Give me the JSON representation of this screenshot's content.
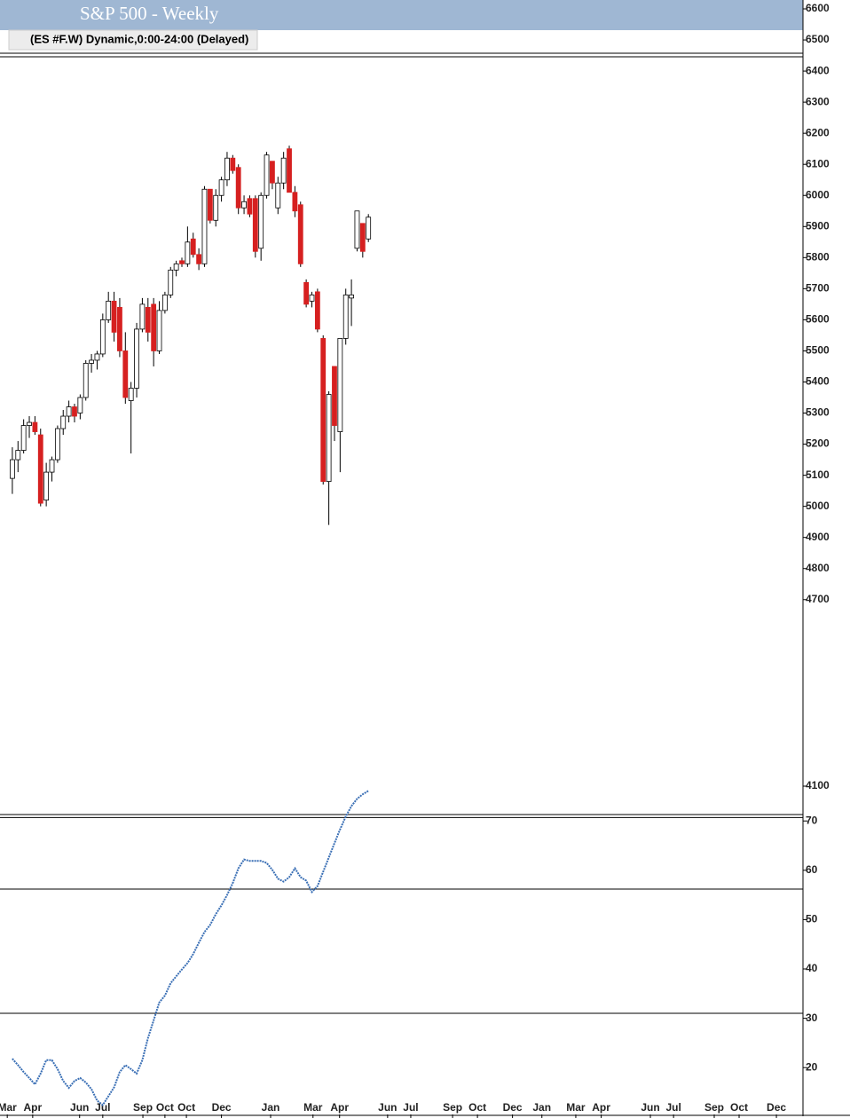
{
  "chart_data": [
    {
      "type": "candlestick",
      "title": "S&P 500 - Weekly",
      "subtitle": "(ES #F.W) Dynamic,0:00-24:00 (Delayed)",
      "up_color": "#ffffff",
      "down_color": "#d62020",
      "xlim": [
        -1.4,
        139.9
      ],
      "ylim": [
        4100,
        6620
      ],
      "yticks": [
        6600,
        6500,
        6400,
        6300,
        6200,
        6100,
        6000,
        5900,
        5800,
        5700,
        5600,
        5500,
        5400,
        5300,
        5200,
        5100,
        5000,
        4900,
        4800,
        4700,
        4100
      ],
      "open": [
        5090,
        5150,
        5180,
        5260,
        5270,
        5230,
        5020,
        5110,
        5150,
        5250,
        5290,
        5320,
        5300,
        5350,
        5460,
        5470,
        5490,
        5600,
        5660,
        5640,
        5500,
        5340,
        5380,
        5570,
        5640,
        5650,
        5500,
        5630,
        5680,
        5760,
        5790,
        5780,
        5860,
        5810,
        5780,
        6020,
        5920,
        6000,
        6050,
        6120,
        6090,
        5960,
        5990,
        5990,
        5830,
        6000,
        6110,
        5960,
        6040,
        6150,
        6010,
        5970,
        5720,
        5660,
        5690,
        5540,
        5080,
        5450,
        5240,
        5540,
        5670,
        5830,
        5910,
        5860
      ],
      "high": [
        5190,
        5210,
        5280,
        5290,
        5290,
        5250,
        5140,
        5160,
        5260,
        5310,
        5340,
        5330,
        5360,
        5470,
        5490,
        5500,
        5620,
        5690,
        5690,
        5670,
        5560,
        5400,
        5590,
        5670,
        5670,
        5670,
        5660,
        5690,
        5770,
        5790,
        5800,
        5900,
        5880,
        5830,
        6030,
        6020,
        6020,
        6060,
        6140,
        6130,
        6100,
        6000,
        6000,
        6000,
        6010,
        6140,
        6110,
        6060,
        6140,
        6160,
        6030,
        5980,
        5730,
        5690,
        5700,
        5550,
        5370,
        5450,
        5540,
        5700,
        5730,
        5950,
        5910,
        5940
      ],
      "low": [
        5040,
        5110,
        5170,
        5220,
        5230,
        5000,
        5000,
        5080,
        5140,
        5230,
        5270,
        5270,
        5280,
        5340,
        5430,
        5440,
        5480,
        5590,
        5530,
        5480,
        5330,
        5170,
        5350,
        5560,
        5530,
        5450,
        5490,
        5620,
        5670,
        5740,
        5770,
        5770,
        5800,
        5760,
        5770,
        5910,
        5900,
        5980,
        6030,
        6070,
        5940,
        5940,
        5930,
        5800,
        5790,
        5990,
        6020,
        5940,
        6020,
        6010,
        5930,
        5770,
        5640,
        5640,
        5560,
        5070,
        4940,
        5210,
        5110,
        5520,
        5580,
        5820,
        5800,
        5850
      ],
      "close": [
        5150,
        5180,
        5260,
        5270,
        5240,
        5010,
        5110,
        5150,
        5250,
        5290,
        5320,
        5290,
        5350,
        5460,
        5470,
        5490,
        5600,
        5660,
        5560,
        5500,
        5350,
        5380,
        5570,
        5650,
        5560,
        5500,
        5630,
        5680,
        5760,
        5780,
        5780,
        5850,
        5810,
        5780,
        6020,
        5920,
        6000,
        6050,
        6120,
        6080,
        5960,
        5980,
        5940,
        5820,
        6000,
        6130,
        6040,
        6040,
        6120,
        6010,
        5950,
        5780,
        5650,
        5680,
        5570,
        5080,
        5360,
        5260,
        5540,
        5680,
        5680,
        5950,
        5820,
        5930
      ]
    },
    {
      "type": "line",
      "color": "#3a6fb5",
      "xlim": [
        -1.4,
        139.9
      ],
      "ylim": [
        10.5,
        71.3
      ],
      "yticks": [
        70,
        60,
        50,
        40,
        30,
        20
      ],
      "hlines": [
        70.7,
        56.2,
        31.0
      ],
      "xticks": [
        {
          "value": -0.9,
          "label": "Mar"
        },
        {
          "value": 3.6,
          "label": "Apr"
        },
        {
          "value": 11.9,
          "label": "Jun"
        },
        {
          "value": 16,
          "label": "Jul"
        },
        {
          "value": 23.1,
          "label": "Sep"
        },
        {
          "value": 27,
          "label": "Oct"
        },
        {
          "value": 30.8,
          "label": "Oct"
        },
        {
          "value": 37,
          "label": "Dec"
        },
        {
          "value": 45.7,
          "label": "Jan"
        },
        {
          "value": 53.2,
          "label": "Mar"
        },
        {
          "value": 57.9,
          "label": "Apr"
        },
        {
          "value": 66.4,
          "label": "Jun"
        },
        {
          "value": 70.5,
          "label": "Jul"
        },
        {
          "value": 77.9,
          "label": "Sep"
        },
        {
          "value": 82.3,
          "label": "Oct"
        },
        {
          "value": 88.5,
          "label": "Dec"
        },
        {
          "value": 93.7,
          "label": "Jan"
        },
        {
          "value": 99.7,
          "label": "Mar"
        },
        {
          "value": 104.2,
          "label": "Apr"
        },
        {
          "value": 112.9,
          "label": "Jun"
        },
        {
          "value": 117,
          "label": "Jul"
        },
        {
          "value": 124.2,
          "label": "Sep"
        },
        {
          "value": 128.6,
          "label": "Oct"
        },
        {
          "value": 135.2,
          "label": "Dec"
        }
      ],
      "values": [
        21.8,
        20.5,
        19.1,
        17.9,
        16.6,
        18.8,
        21.5,
        21.5,
        19.7,
        17.3,
        15.9,
        17.3,
        17.9,
        17.0,
        15.6,
        13.3,
        12.4,
        14.2,
        16.0,
        19.1,
        20.5,
        19.7,
        18.8,
        21.5,
        26.0,
        29.6,
        33.2,
        34.6,
        37.1,
        38.5,
        39.9,
        41.2,
        43.0,
        45.3,
        47.5,
        48.9,
        51.1,
        52.9,
        55.0,
        57.4,
        60.4,
        62.2,
        61.9,
        61.9,
        61.9,
        61.5,
        60.1,
        58.3,
        57.7,
        58.6,
        60.4,
        58.6,
        57.9,
        55.6,
        56.8,
        59.7,
        62.6,
        65.5,
        68.3,
        70.9,
        73.0,
        74.5,
        75.4,
        76.1
      ]
    }
  ]
}
